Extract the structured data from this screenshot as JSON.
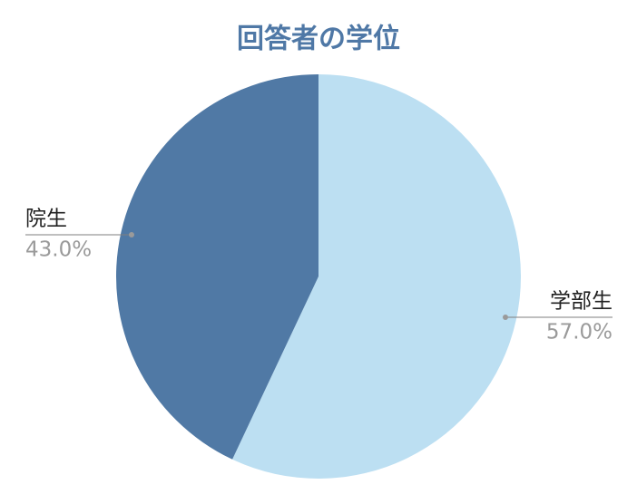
{
  "chart_data": {
    "type": "pie",
    "title": "回答者の学位",
    "categories": [
      "学部生",
      "院生"
    ],
    "values": [
      57,
      43
    ],
    "value_labels": [
      "57.0%",
      "43.0%"
    ],
    "colors": [
      "#bcdff2",
      "#5079a5"
    ],
    "start_angle": 0,
    "direction": "clockwise"
  }
}
